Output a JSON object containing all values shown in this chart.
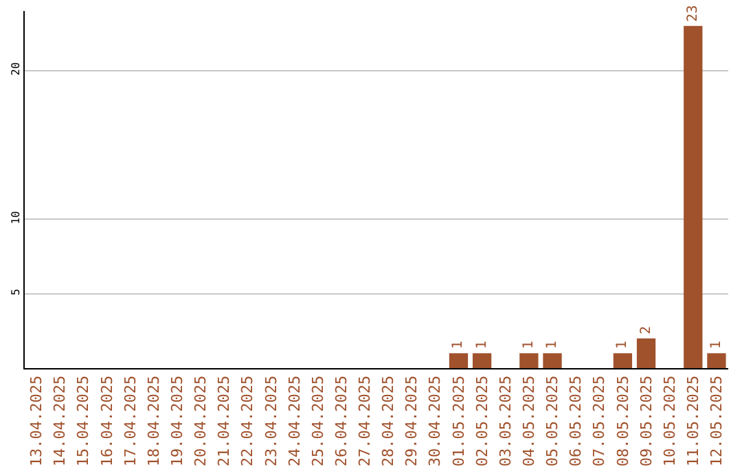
{
  "chart_data": {
    "type": "bar",
    "categories": [
      "13.04.2025",
      "14.04.2025",
      "15.04.2025",
      "16.04.2025",
      "17.04.2025",
      "18.04.2025",
      "19.04.2025",
      "20.04.2025",
      "21.04.2025",
      "22.04.2025",
      "23.04.2025",
      "24.04.2025",
      "25.04.2025",
      "26.04.2025",
      "27.04.2025",
      "28.04.2025",
      "29.04.2025",
      "30.04.2025",
      "01.05.2025",
      "02.05.2025",
      "03.05.2025",
      "04.05.2025",
      "05.05.2025",
      "06.05.2025",
      "07.05.2025",
      "08.05.2025",
      "09.05.2025",
      "10.05.2025",
      "11.05.2025",
      "12.05.2025"
    ],
    "values": [
      0,
      0,
      0,
      0,
      0,
      0,
      0,
      0,
      0,
      0,
      0,
      0,
      0,
      0,
      0,
      0,
      0,
      0,
      1,
      1,
      0,
      1,
      1,
      0,
      0,
      1,
      2,
      0,
      23,
      1
    ],
    "value_labels": [
      null,
      null,
      null,
      null,
      null,
      null,
      null,
      null,
      null,
      null,
      null,
      null,
      null,
      null,
      null,
      null,
      null,
      null,
      "1",
      "1",
      null,
      "1",
      "1",
      null,
      null,
      "1",
      "2",
      null,
      "23",
      "1"
    ],
    "color": "#a0522d",
    "ylim": [
      0,
      24
    ],
    "yticks": [
      5,
      10,
      20
    ],
    "grid": "y",
    "legend": false
  }
}
